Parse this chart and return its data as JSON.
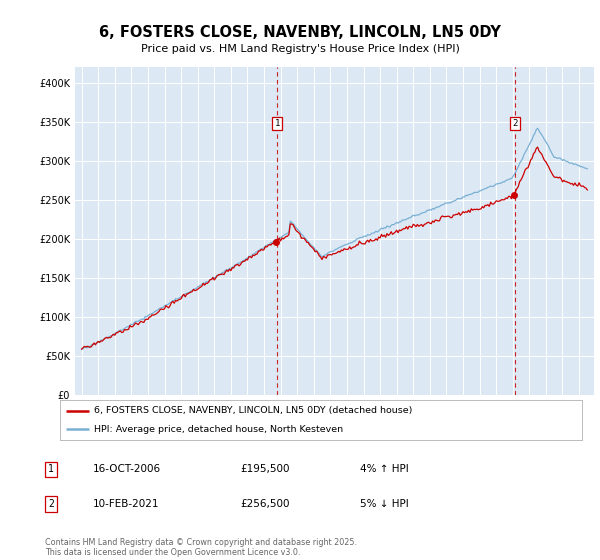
{
  "title": "6, FOSTERS CLOSE, NAVENBY, LINCOLN, LN5 0DY",
  "subtitle": "Price paid vs. HM Land Registry's House Price Index (HPI)",
  "plot_bg_color": "#dce9f5",
  "legend_label_red": "6, FOSTERS CLOSE, NAVENBY, LINCOLN, LN5 0DY (detached house)",
  "legend_label_blue": "HPI: Average price, detached house, North Kesteven",
  "footer": "Contains HM Land Registry data © Crown copyright and database right 2025.\nThis data is licensed under the Open Government Licence v3.0.",
  "marker1_date": "16-OCT-2006",
  "marker1_price": "£195,500",
  "marker1_hpi": "4% ↑ HPI",
  "marker2_date": "10-FEB-2021",
  "marker2_price": "£256,500",
  "marker2_hpi": "5% ↓ HPI",
  "ylim": [
    0,
    420000
  ],
  "yticks": [
    0,
    50000,
    100000,
    150000,
    200000,
    250000,
    300000,
    350000,
    400000
  ],
  "red_color": "#cc0000",
  "blue_color": "#7ab0d4",
  "marker_vline_color": "#cc0000",
  "t1_year": 2006.79,
  "t2_year": 2021.12,
  "sale1_price": 195500,
  "sale2_price": 256500
}
